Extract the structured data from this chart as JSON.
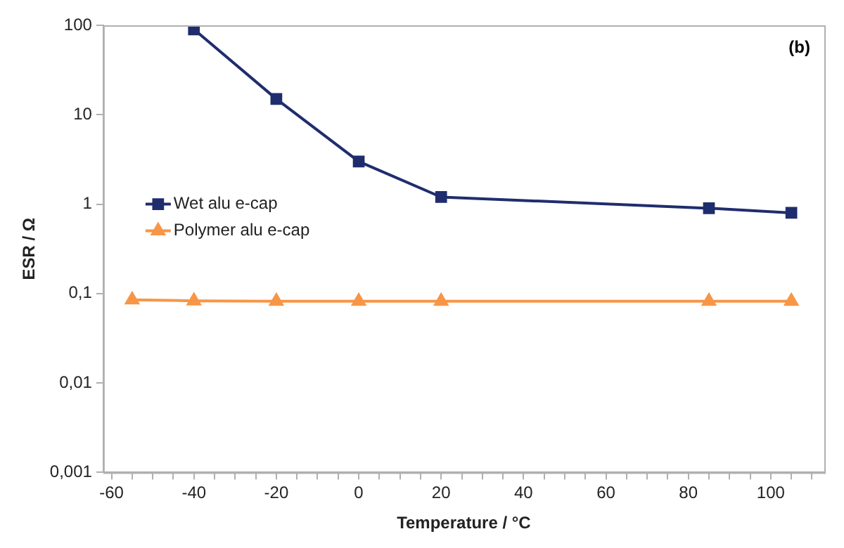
{
  "chart_data": {
    "type": "line",
    "xlabel": "Temperature / °C",
    "ylabel": "ESR / Ω",
    "annotations": [
      "(b)"
    ],
    "log": "y",
    "grid": false,
    "legend": "left",
    "line_style": "solid",
    "xlim": [
      -62,
      113
    ],
    "xticks": [
      -60,
      {
        "value": -55,
        "label": null
      },
      {
        "value": -50,
        "label": null
      },
      {
        "value": -45,
        "label": null
      },
      -40,
      {
        "value": -35,
        "label": null
      },
      {
        "value": -30,
        "label": null
      },
      {
        "value": -25,
        "label": null
      },
      -20,
      {
        "value": -15,
        "label": null
      },
      {
        "value": -10,
        "label": null
      },
      {
        "value": -5,
        "label": null
      },
      0,
      {
        "value": 5,
        "label": null
      },
      {
        "value": 10,
        "label": null
      },
      {
        "value": 15,
        "label": null
      },
      20,
      {
        "value": 25,
        "label": null
      },
      {
        "value": 30,
        "label": null
      },
      {
        "value": 35,
        "label": null
      },
      40,
      {
        "value": 45,
        "label": null
      },
      {
        "value": 50,
        "label": null
      },
      {
        "value": 55,
        "label": null
      },
      60,
      {
        "value": 65,
        "label": null
      },
      {
        "value": 70,
        "label": null
      },
      {
        "value": 75,
        "label": null
      },
      80,
      {
        "value": 85,
        "label": null
      },
      {
        "value": 90,
        "label": null
      },
      {
        "value": 95,
        "label": null
      },
      100,
      {
        "value": 105,
        "label": null
      },
      {
        "value": 110,
        "label": null
      }
    ],
    "ylim": [
      0.001,
      100
    ],
    "yticks": [
      {
        "value": 0.001,
        "label": "0,001"
      },
      {
        "value": 0.01,
        "label": "0,01"
      },
      {
        "value": 0.1,
        "label": "0,1"
      },
      1,
      10,
      100
    ],
    "series": [
      {
        "name": "Wet alu e-cap",
        "color": "#1f2d6e",
        "marker": "square",
        "x": [
          -40,
          -20,
          0,
          20,
          85,
          105
        ],
        "values": [
          90,
          15,
          3,
          1.2,
          0.9,
          0.8
        ]
      },
      {
        "name": "Polymer alu e-cap",
        "color": "#f79646",
        "marker": "triangle",
        "x": [
          -55,
          -40,
          -20,
          0,
          20,
          85,
          105
        ],
        "values": [
          0.085,
          0.083,
          0.082,
          0.082,
          0.082,
          0.082,
          0.082
        ]
      }
    ]
  }
}
